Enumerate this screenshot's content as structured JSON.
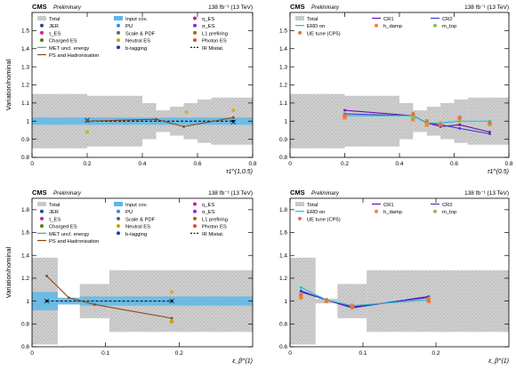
{
  "chart_data": [
    {
      "type": "line",
      "cms_label": "CMS",
      "preliminary": "Preliminary",
      "lumi": "138 fb⁻¹ (13 TeV)",
      "ylabel": "Variation/nominal",
      "xlabel": "τ1^(1,0.5)",
      "xlim": [
        0,
        0.8
      ],
      "ylim": [
        0.8,
        1.6
      ],
      "xticks": [
        0,
        0.2,
        0.4,
        0.6,
        0.8
      ],
      "yticks": [
        0.8,
        0.9,
        1,
        1.1,
        1.2,
        1.3,
        1.4,
        1.5
      ],
      "bin_edges": [
        0,
        0.2,
        0.4,
        0.45,
        0.5,
        0.55,
        0.6,
        0.65,
        0.8
      ],
      "total_band": [
        0.15,
        0.14,
        0.1,
        0.06,
        0.08,
        0.1,
        0.12,
        0.13
      ],
      "input_cov_band": [
        0.02,
        0.02,
        0.02,
        0.02,
        0.02,
        0.02,
        0.02,
        0.02
      ],
      "legend": [
        "Total",
        "Input cov.",
        "η_ES",
        "JER",
        "PU",
        "σ_ES",
        "τ_ES",
        "Scale & PDF",
        "L1 prefiring",
        "Charged ES",
        "Neutral ES",
        "Photon ES",
        "MET uncl. energy",
        "b-tagging",
        "IR Mistat.",
        "PS and Hadronisation"
      ],
      "series": [
        {
          "name": "JER",
          "x": [
            0.2,
            0.73
          ],
          "y": [
            1.005,
            0.995
          ]
        },
        {
          "name": "Scale & PDF",
          "x": [
            0.2,
            0.73
          ],
          "y": [
            1.0,
            1.0
          ]
        },
        {
          "name": "PS and Hadronisation",
          "x": [
            0.2,
            0.45,
            0.55,
            0.73
          ],
          "y": [
            1.0,
            1.01,
            0.97,
            1.02
          ]
        },
        {
          "name": "Photon ES",
          "x": [
            0.56,
            0.73
          ],
          "y": [
            1.05,
            1.06
          ]
        },
        {
          "name": "Charged ES",
          "x": [
            0.2
          ],
          "y": [
            0.94
          ]
        }
      ]
    },
    {
      "type": "line",
      "cms_label": "CMS",
      "preliminary": "Preliminary",
      "lumi": "138 fb⁻¹ (13 TeV)",
      "ylabel": "",
      "xlabel": "τ1^(0.5)",
      "xlim": [
        0,
        0.8
      ],
      "ylim": [
        0.8,
        1.6
      ],
      "xticks": [
        0,
        0.2,
        0.4,
        0.6,
        0.8
      ],
      "yticks": [
        0.8,
        0.9,
        1,
        1.1,
        1.2,
        1.3,
        1.4,
        1.5
      ],
      "bin_edges": [
        0,
        0.2,
        0.4,
        0.45,
        0.5,
        0.55,
        0.6,
        0.65,
        0.8
      ],
      "total_band": [
        0.15,
        0.14,
        0.1,
        0.06,
        0.08,
        0.1,
        0.12,
        0.13
      ],
      "legend": [
        "Total",
        "CR1",
        "CR2",
        "ERD on",
        "h_damp",
        "m_top",
        "UE tune (CP5)"
      ],
      "series": [
        {
          "name": "CR1",
          "x": [
            0.2,
            0.45,
            0.5,
            0.55,
            0.62,
            0.73
          ],
          "y": [
            1.06,
            1.03,
            0.99,
            0.97,
            0.98,
            0.94
          ]
        },
        {
          "name": "CR2",
          "x": [
            0.2,
            0.45,
            0.5,
            0.55,
            0.62,
            0.73
          ],
          "y": [
            1.04,
            1.03,
            0.99,
            0.98,
            0.96,
            0.93
          ]
        },
        {
          "name": "ERD on",
          "x": [
            0.2,
            0.45,
            0.5,
            0.55,
            0.62,
            0.73
          ],
          "y": [
            1.03,
            1.03,
            0.99,
            0.99,
            1.0,
            1.0
          ]
        },
        {
          "name": "h_damp",
          "x": [
            0.2,
            0.45,
            0.5,
            0.55,
            0.62,
            0.73
          ],
          "y": [
            1.02,
            1.01,
            0.98,
            0.98,
            1.01,
            0.99
          ]
        },
        {
          "name": "m_top",
          "x": [
            0.2,
            0.45,
            0.5,
            0.55,
            0.62,
            0.73
          ],
          "y": [
            1.03,
            1.02,
            0.99,
            0.99,
            1.0,
            0.98
          ]
        },
        {
          "name": "UE tune (CP5)",
          "x": [
            0.2,
            0.45,
            0.5,
            0.55,
            0.62,
            0.73
          ],
          "y": [
            1.03,
            1.04,
            1.0,
            0.98,
            1.02,
            0.99
          ]
        }
      ]
    },
    {
      "type": "line",
      "cms_label": "CMS",
      "preliminary": "Preliminary",
      "lumi": "138 fb⁻¹ (13 TeV)",
      "ylabel": "Variation/nominal",
      "xlabel": "ε_β^(1)",
      "xlim": [
        0,
        0.3
      ],
      "ylim": [
        0.6,
        1.9
      ],
      "xticks": [
        0,
        0.1,
        0.2
      ],
      "yticks": [
        0.6,
        0.8,
        1,
        1.2,
        1.4,
        1.6,
        1.8
      ],
      "bin_edges": [
        0,
        0.035,
        0.065,
        0.105,
        0.3
      ],
      "total_band": [
        0.38,
        0.02,
        0.15,
        0.27
      ],
      "input_cov_band": [
        0.08,
        0.03,
        0.04,
        0.04
      ],
      "legend": [
        "Total",
        "Input cov.",
        "η_ES",
        "JER",
        "PU",
        "σ_ES",
        "τ_ES",
        "Scale & PDF",
        "L1 prefiring",
        "Charged ES",
        "Neutral ES",
        "Photon ES",
        "MET uncl. energy",
        "b-tagging",
        "IR Mistat.",
        "PS and Hadronisation"
      ],
      "series": [
        {
          "name": "JER",
          "x": [
            0.02,
            0.19
          ],
          "y": [
            1.0,
            1.0
          ]
        },
        {
          "name": "Scale & PDF",
          "x": [
            0.02,
            0.19
          ],
          "y": [
            1.0,
            1.0
          ]
        },
        {
          "name": "PS and Hadronisation",
          "x": [
            0.02,
            0.05,
            0.085,
            0.19
          ],
          "y": [
            1.22,
            1.03,
            0.97,
            0.85
          ]
        },
        {
          "name": "Photon ES",
          "x": [
            0.19
          ],
          "y": [
            1.08
          ]
        },
        {
          "name": "Neutral ES",
          "x": [
            0.19
          ],
          "y": [
            0.82
          ]
        }
      ]
    },
    {
      "type": "line",
      "cms_label": "CMS",
      "preliminary": "Preliminary",
      "lumi": "138 fb⁻¹ (13 TeV)",
      "ylabel": "",
      "xlabel": "ε_β^(1)",
      "xlim": [
        0,
        0.3
      ],
      "ylim": [
        0.6,
        1.9
      ],
      "xticks": [
        0,
        0.1,
        0.2
      ],
      "yticks": [
        0.6,
        0.8,
        1,
        1.2,
        1.4,
        1.6,
        1.8
      ],
      "bin_edges": [
        0,
        0.035,
        0.065,
        0.105,
        0.3
      ],
      "total_band": [
        0.38,
        0.02,
        0.15,
        0.27
      ],
      "legend": [
        "Total",
        "CR1",
        "CR2",
        "ERD on",
        "h_damp",
        "m_top",
        "UE tune (CP5)"
      ],
      "series": [
        {
          "name": "CR1",
          "x": [
            0.015,
            0.05,
            0.085,
            0.19
          ],
          "y": [
            1.08,
            1.01,
            0.94,
            1.04
          ]
        },
        {
          "name": "CR2",
          "x": [
            0.015,
            0.05,
            0.085,
            0.19
          ],
          "y": [
            1.09,
            1.01,
            0.95,
            1.03
          ]
        },
        {
          "name": "ERD on",
          "x": [
            0.015,
            0.05,
            0.085,
            0.19
          ],
          "y": [
            1.12,
            1.01,
            0.96,
            1.01
          ]
        },
        {
          "name": "h_damp",
          "x": [
            0.015,
            0.05,
            0.085,
            0.19
          ],
          "y": [
            1.03,
            1.0,
            0.96,
            1.0
          ]
        },
        {
          "name": "m_top",
          "x": [
            0.015,
            0.05,
            0.085,
            0.19
          ],
          "y": [
            1.06,
            1.01,
            0.95,
            1.02
          ]
        },
        {
          "name": "UE tune (CP5)",
          "x": [
            0.015,
            0.05,
            0.085,
            0.19
          ],
          "y": [
            1.05,
            1.01,
            0.95,
            1.01
          ]
        }
      ]
    }
  ]
}
